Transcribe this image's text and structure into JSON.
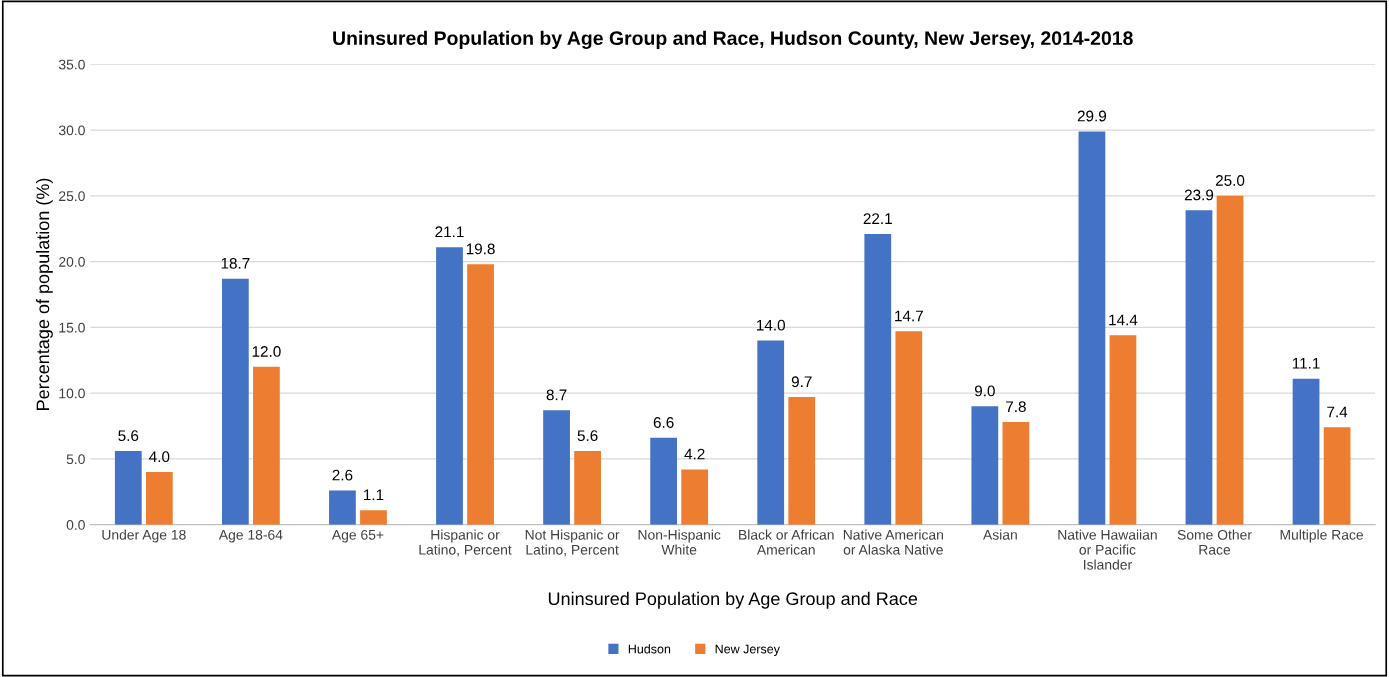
{
  "chart_data": {
    "type": "bar",
    "title": "Uninsured Population by Age Group and Race, Hudson County, New Jersey, 2014-2018",
    "xlabel": "Uninsured Population by Age Group and Race",
    "ylabel": "Percentage of population (%)",
    "categories": [
      "Under Age 18",
      "Age 18-64",
      "Age 65+",
      "Hispanic or\nLatino, Percent",
      "Not Hispanic or\nLatino, Percent",
      "Non-Hispanic\nWhite",
      "Black or African\nAmerican",
      "Native American\nor Alaska Native",
      "Asian",
      "Native Hawaiian\nor Pacific\nIslander",
      "Some Other\nRace",
      "Multiple Race"
    ],
    "series": [
      {
        "name": "Hudson",
        "color": "#4472c4",
        "values": [
          5.6,
          18.7,
          2.6,
          21.1,
          8.7,
          6.6,
          14.0,
          22.1,
          9.0,
          29.9,
          23.9,
          11.1
        ],
        "value_labels": [
          "5.6",
          "18.7",
          "2.6",
          "21.1",
          "8.7",
          "6.6",
          "14.0",
          "22.1",
          "9.0",
          "29.9",
          "23.9",
          "11.1"
        ]
      },
      {
        "name": "New Jersey",
        "color": "#ed7d31",
        "values": [
          4.0,
          12.0,
          1.1,
          19.8,
          5.6,
          4.2,
          9.7,
          14.7,
          7.8,
          14.4,
          25.0,
          7.4
        ],
        "value_labels": [
          "4.0",
          "12.0",
          "1.1",
          "19.8",
          "5.6",
          "4.2",
          "9.7",
          "14.7",
          "7.8",
          "14.4",
          "25.0",
          "7.4"
        ]
      }
    ],
    "ylim": [
      0,
      35
    ],
    "yticks": [
      {
        "value": 0,
        "label": "0.0"
      },
      {
        "value": 5,
        "label": "5.0"
      },
      {
        "value": 10,
        "label": "10.0"
      },
      {
        "value": 15,
        "label": "15.0"
      },
      {
        "value": 20,
        "label": "20.0"
      },
      {
        "value": 25,
        "label": "25.0"
      },
      {
        "value": 30,
        "label": "30.0"
      },
      {
        "value": 35,
        "label": "35.0"
      }
    ],
    "grid": "y",
    "legend": "bottom"
  }
}
